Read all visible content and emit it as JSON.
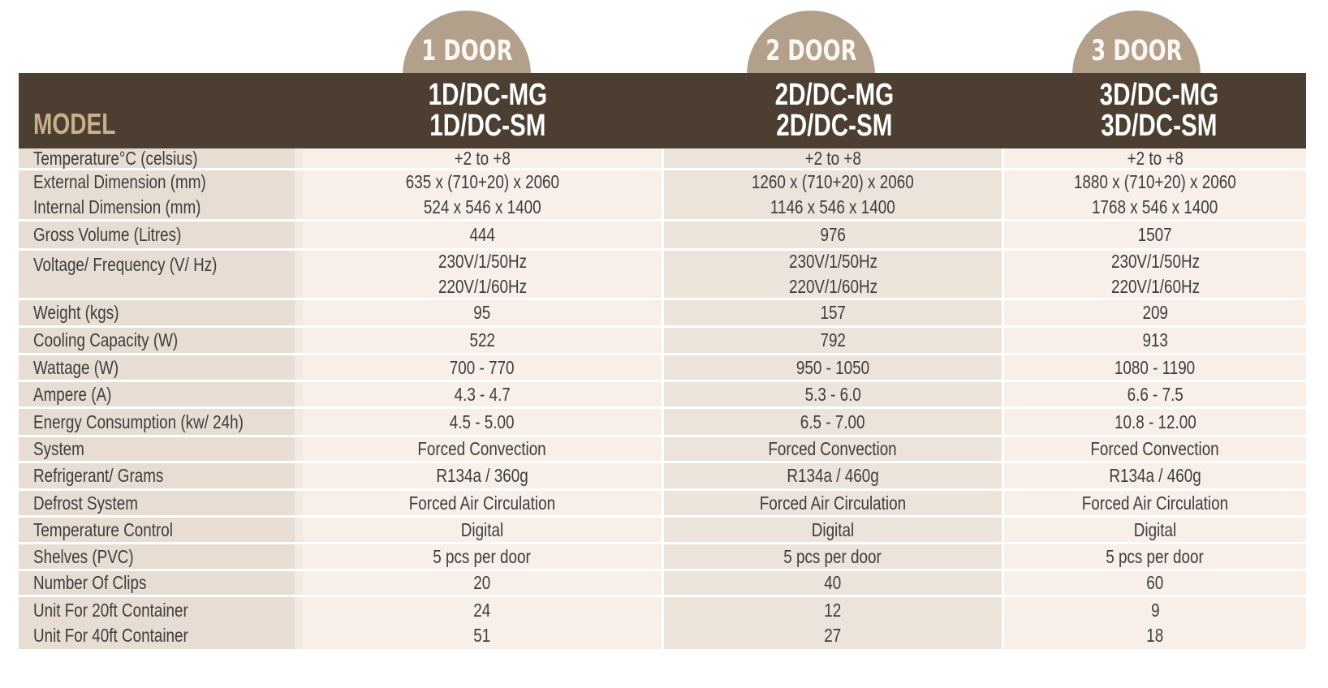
{
  "tabs": [
    "1 DOOR",
    "2 DOOR",
    "3 DOOR"
  ],
  "header": {
    "label": "MODEL",
    "models": [
      [
        "1D/DC-MG",
        "1D/DC-SM"
      ],
      [
        "2D/DC-MG",
        "2D/DC-SM"
      ],
      [
        "3D/DC-MG",
        "3D/DC-SM"
      ]
    ]
  },
  "rows": [
    {
      "label": [
        "Temperature°C (celsius)"
      ],
      "v1": [
        "+2 to +8"
      ],
      "v2": [
        "+2 to +8"
      ],
      "v3": [
        "+2 to +8"
      ]
    },
    {
      "label": [
        "External Dimension (mm)",
        "Internal Dimension (mm)"
      ],
      "v1": [
        "635 x (710+20) x 2060",
        "524 x 546 x 1400"
      ],
      "v2": [
        "1260 x (710+20) x 2060",
        "1146 x 546 x 1400"
      ],
      "v3": [
        "1880 x (710+20) x 2060",
        "1768 x 546 x 1400"
      ]
    },
    {
      "label": [
        "Gross Volume (Litres)"
      ],
      "v1": [
        "444"
      ],
      "v2": [
        "976"
      ],
      "v3": [
        "1507"
      ]
    },
    {
      "label": [
        "Voltage/ Frequency (V/ Hz)"
      ],
      "v1": [
        "230V/1/50Hz",
        "220V/1/60Hz"
      ],
      "v2": [
        "230V/1/50Hz",
        "220V/1/60Hz"
      ],
      "v3": [
        "230V/1/50Hz",
        "220V/1/60Hz"
      ]
    },
    {
      "label": [
        "Weight (kgs)"
      ],
      "v1": [
        "95"
      ],
      "v2": [
        "157"
      ],
      "v3": [
        "209"
      ]
    },
    {
      "label": [
        "Cooling Capacity (W)"
      ],
      "v1": [
        "522"
      ],
      "v2": [
        "792"
      ],
      "v3": [
        "913"
      ]
    },
    {
      "label": [
        "Wattage (W)"
      ],
      "v1": [
        "700 - 770"
      ],
      "v2": [
        "950 - 1050"
      ],
      "v3": [
        "1080 - 1190"
      ]
    },
    {
      "label": [
        "Ampere (A)"
      ],
      "v1": [
        "4.3 - 4.7"
      ],
      "v2": [
        "5.3 - 6.0"
      ],
      "v3": [
        "6.6 - 7.5"
      ]
    },
    {
      "label": [
        "Energy Consumption (kw/ 24h)"
      ],
      "v1": [
        "4.5 - 5.00"
      ],
      "v2": [
        "6.5 - 7.00"
      ],
      "v3": [
        "10.8 - 12.00"
      ]
    },
    {
      "label": [
        "System"
      ],
      "v1": [
        "Forced Convection"
      ],
      "v2": [
        "Forced Convection"
      ],
      "v3": [
        "Forced Convection"
      ]
    },
    {
      "label": [
        "Refrigerant/ Grams"
      ],
      "v1": [
        "R134a / 360g"
      ],
      "v2": [
        "R134a / 460g"
      ],
      "v3": [
        "R134a / 460g"
      ]
    },
    {
      "label": [
        "Defrost System"
      ],
      "v1": [
        "Forced Air Circulation"
      ],
      "v2": [
        "Forced Air Circulation"
      ],
      "v3": [
        "Forced Air Circulation"
      ]
    },
    {
      "label": [
        "Temperature Control"
      ],
      "v1": [
        "Digital"
      ],
      "v2": [
        "Digital"
      ],
      "v3": [
        "Digital"
      ]
    },
    {
      "label": [
        "Shelves (PVC)"
      ],
      "v1": [
        "5 pcs per door"
      ],
      "v2": [
        "5 pcs per door"
      ],
      "v3": [
        "5 pcs per door"
      ]
    },
    {
      "label": [
        "Number Of Clips"
      ],
      "v1": [
        "20"
      ],
      "v2": [
        "40"
      ],
      "v3": [
        "60"
      ]
    },
    {
      "label": [
        "Unit For 20ft Container",
        "Unit For 40ft Container"
      ],
      "v1": [
        "24",
        "51"
      ],
      "v2": [
        "12",
        "27"
      ],
      "v3": [
        "9",
        "18"
      ]
    }
  ]
}
